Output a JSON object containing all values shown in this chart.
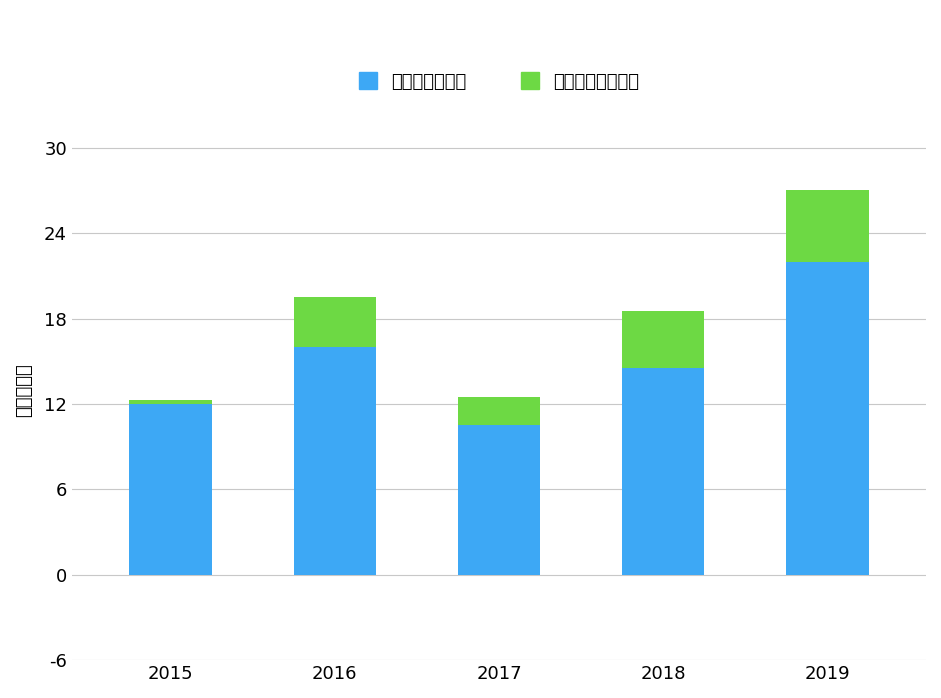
{
  "years": [
    "2015",
    "2016",
    "2017",
    "2018",
    "2019"
  ],
  "revenue": [
    12.0,
    16.0,
    10.5,
    14.5,
    22.0
  ],
  "gross_profit": [
    0.3,
    3.5,
    2.0,
    4.0,
    5.0
  ],
  "bar_color_blue": "#3DA8F5",
  "bar_color_green": "#6DD944",
  "background_color": "#FFFFFF",
  "grid_color": "#C8C8C8",
  "ylabel": "单位：亿元",
  "legend_revenue": "新能源业务收入",
  "legend_profit": "新能源业务毛利润",
  "ylim_min": -6,
  "ylim_max": 32,
  "yticks": [
    -6,
    0,
    6,
    12,
    18,
    24,
    30
  ],
  "bar_width": 0.5,
  "legend_fontsize": 13,
  "axis_fontsize": 13,
  "tick_fontsize": 13
}
